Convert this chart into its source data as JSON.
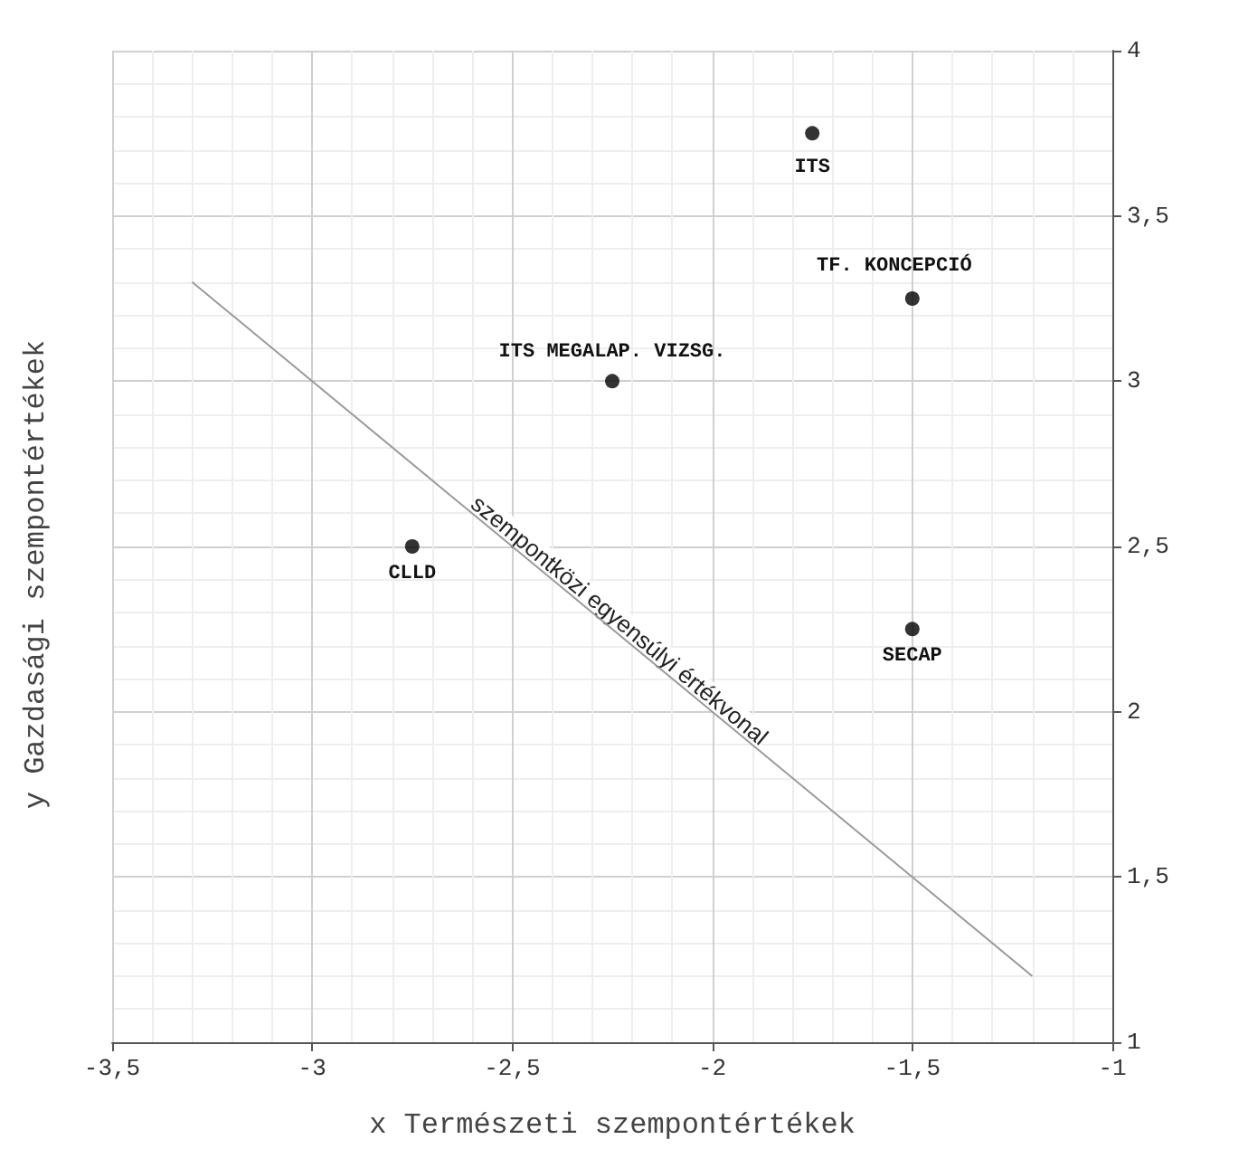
{
  "chart_data": {
    "type": "scatter",
    "xlabel": "x Természeti szempontértékek",
    "ylabel": "y Gazdasági szempontértékek",
    "series": [
      {
        "color": "#000000",
        "marker": "circle",
        "x": [
          -1.75,
          -1.5,
          -2.25,
          -2.75,
          -1.5
        ],
        "values": [
          3.75,
          3.25,
          3.0,
          2.5,
          2.25
        ]
      },
      {
        "type": "line",
        "color": "#999999",
        "x": [
          -3.3,
          -1.2
        ],
        "values": [
          3.3,
          1.2
        ]
      }
    ],
    "annotations": [
      {
        "text": "ITS",
        "x": -1.75,
        "y": 3.75
      },
      {
        "text": "TF. KONCEPCIÓ",
        "x": -1.5,
        "y": 3.25
      },
      {
        "text": "ITS MEGALAP. VIZSG.",
        "x": -2.25,
        "y": 3.0
      },
      {
        "text": "CLLD",
        "x": -2.75,
        "y": 2.5
      },
      {
        "text": "SECAP",
        "x": -1.5,
        "y": 2.25
      },
      {
        "text": "szempontközi egyensúlyi értékvonal",
        "x": -2.25,
        "y": 2.25
      }
    ],
    "xlim": [
      -3.5,
      -1
    ],
    "xticks": [
      {
        "value": -3.5,
        "label": "-3,5"
      },
      -3,
      {
        "value": -2.5,
        "label": "-2,5"
      },
      -2,
      {
        "value": -1.5,
        "label": "-1,5"
      },
      -1
    ],
    "ylim": [
      1,
      4
    ],
    "yticks": [
      1,
      {
        "value": 1.5,
        "label": "1,5"
      },
      2,
      {
        "value": 2.5,
        "label": "2,5"
      },
      3,
      {
        "value": 3.5,
        "label": "3,5"
      },
      4
    ],
    "grid": true
  }
}
